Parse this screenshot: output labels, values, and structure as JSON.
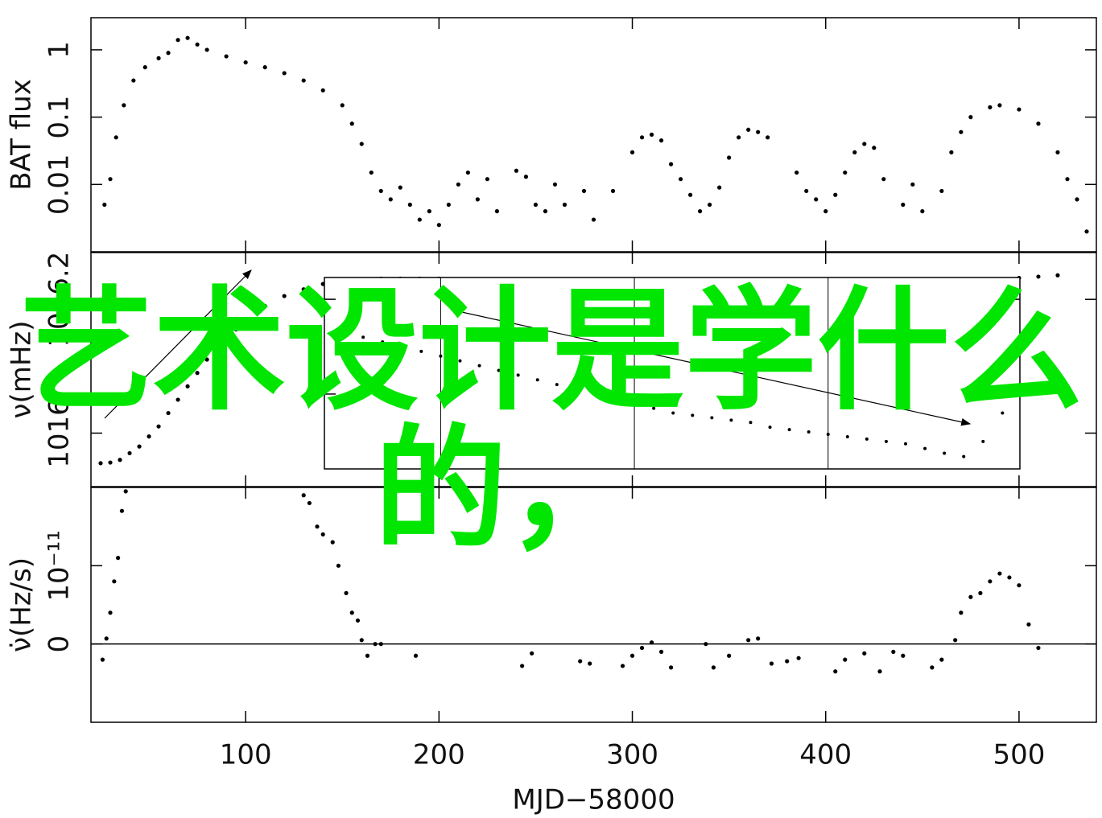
{
  "chart_data": [
    {
      "type": "scatter",
      "y_label": "BAT flux",
      "log_y": true,
      "ylim": [
        0.001,
        3
      ],
      "yticks": [
        0.01,
        0.1,
        1
      ],
      "color": "#000000",
      "x": [
        27,
        30,
        33,
        37,
        42,
        48,
        55,
        60,
        65,
        70,
        75,
        80,
        90,
        100,
        110,
        120,
        130,
        140,
        150,
        155,
        160,
        165,
        170,
        175,
        180,
        185,
        190,
        195,
        200,
        205,
        210,
        215,
        220,
        225,
        230,
        240,
        245,
        250,
        255,
        260,
        265,
        275,
        280,
        290,
        300,
        305,
        310,
        315,
        320,
        325,
        330,
        335,
        340,
        345,
        350,
        355,
        360,
        365,
        370,
        385,
        390,
        395,
        400,
        405,
        410,
        415,
        420,
        425,
        430,
        440,
        445,
        450,
        460,
        465,
        470,
        475,
        485,
        490,
        500,
        510,
        520,
        525,
        530,
        535
      ],
      "values": [
        0.005,
        0.012,
        0.05,
        0.15,
        0.35,
        0.55,
        0.75,
        0.9,
        1.4,
        1.5,
        1.2,
        1.0,
        0.8,
        0.65,
        0.55,
        0.45,
        0.35,
        0.25,
        0.15,
        0.08,
        0.04,
        0.015,
        0.008,
        0.006,
        0.009,
        0.005,
        0.003,
        0.004,
        0.0025,
        0.005,
        0.01,
        0.015,
        0.006,
        0.012,
        0.004,
        0.016,
        0.013,
        0.005,
        0.004,
        0.01,
        0.005,
        0.008,
        0.003,
        0.008,
        0.03,
        0.05,
        0.055,
        0.045,
        0.02,
        0.012,
        0.007,
        0.004,
        0.005,
        0.009,
        0.025,
        0.05,
        0.065,
        0.06,
        0.05,
        0.015,
        0.008,
        0.006,
        0.004,
        0.007,
        0.015,
        0.03,
        0.04,
        0.035,
        0.012,
        0.005,
        0.01,
        0.004,
        0.008,
        0.03,
        0.06,
        0.1,
        0.14,
        0.15,
        0.13,
        0.08,
        0.03,
        0.012,
        0.006,
        0.002
      ]
    },
    {
      "type": "scatter",
      "y_label": "ν(mHz)",
      "ylim": [
        1015.92,
        1016.27
      ],
      "yticks": [
        1016,
        1016.2
      ],
      "color": "#000000",
      "x": [
        25,
        30,
        35,
        40,
        45,
        50,
        55,
        60,
        65,
        70,
        75,
        80,
        85,
        90,
        95,
        100,
        110,
        120,
        130,
        140,
        150,
        160,
        170,
        180,
        190,
        200,
        220,
        240,
        260,
        280,
        300,
        320,
        340,
        360,
        380,
        400,
        420,
        440,
        460,
        470,
        480,
        500,
        510,
        520
      ],
      "values": [
        1015.955,
        1015.956,
        1015.96,
        1015.97,
        1015.98,
        1015.995,
        1016.01,
        1016.03,
        1016.05,
        1016.07,
        1016.09,
        1016.11,
        1016.13,
        1016.14,
        1016.155,
        1016.17,
        1016.19,
        1016.205,
        1016.215,
        1016.223,
        1016.228,
        1016.23,
        1016.231,
        1016.231,
        1016.231,
        1016.231,
        1016.23,
        1016.23,
        1016.229,
        1016.229,
        1016.228,
        1016.228,
        1016.227,
        1016.227,
        1016.226,
        1016.226,
        1016.225,
        1016.225,
        1016.225,
        1016.226,
        1016.228,
        1016.232,
        1016.234,
        1016.236
      ]
    },
    {
      "type": "scatter",
      "y_label": "ν̇(Hz/s)",
      "x_label": "MJD−58000",
      "xlim": [
        20,
        540
      ],
      "xticks": [
        100,
        200,
        300,
        400,
        500
      ],
      "ylim": [
        -1e-11,
        2e-11
      ],
      "yticks": [
        0,
        {
          "value": 1e-11,
          "label": "10⁻¹¹"
        }
      ],
      "zero_line": true,
      "color": "#000000",
      "x": [
        26,
        28,
        30,
        32,
        34,
        36,
        38,
        130,
        133,
        137,
        140,
        145,
        148,
        152,
        155,
        158,
        160,
        163,
        167,
        170,
        188,
        243,
        248,
        273,
        278,
        295,
        300,
        305,
        310,
        315,
        320,
        338,
        342,
        350,
        360,
        365,
        372,
        380,
        386,
        405,
        410,
        420,
        428,
        435,
        440,
        455,
        460,
        467,
        470,
        475,
        480,
        485,
        490,
        495,
        500,
        505,
        510
      ],
      "values": [
        -2e-12,
        7e-13,
        4e-12,
        8e-12,
        1.1e-11,
        1.7e-11,
        1.95e-11,
        1.9e-11,
        1.8e-11,
        1.5e-11,
        1.4e-11,
        1.3e-11,
        1e-11,
        6.5e-12,
        4e-12,
        3e-12,
        5e-13,
        -1.5e-12,
        0,
        0,
        -1.5e-12,
        -2.8e-12,
        -1.2e-12,
        -2.2e-12,
        -2.5e-12,
        -2.8e-12,
        -1.5e-12,
        -5e-13,
        2e-13,
        -1e-12,
        -3e-12,
        0,
        -3e-12,
        -1.5e-12,
        5e-13,
        7e-13,
        -2.5e-12,
        -2.2e-12,
        -1.8e-12,
        -3.5e-12,
        -2e-12,
        -1.2e-12,
        -3.5e-12,
        -1e-12,
        -1.5e-12,
        -3e-12,
        -2e-12,
        5e-13,
        4e-12,
        6e-12,
        6.5e-12,
        8e-12,
        9e-12,
        8.5e-12,
        7.5e-12,
        2.5e-12,
        -5e-13
      ]
    },
    {
      "type": "scatter",
      "inset": true,
      "xlim": [
        140,
        499
      ],
      "xgrid": [
        200,
        300,
        400
      ],
      "ylim": [
        0.42,
        4.46
      ],
      "yticks": [
        2,
        4
      ],
      "color": "#000000",
      "x": [
        150,
        160,
        170,
        180,
        190,
        200,
        210,
        220,
        230,
        240,
        250,
        260,
        270,
        280,
        290,
        300,
        310,
        320,
        330,
        340,
        350,
        360,
        370,
        380,
        390,
        400,
        410,
        420,
        430,
        440,
        450,
        460,
        470,
        480,
        490,
        499
      ],
      "values": [
        3.3,
        3.2,
        3.1,
        3.0,
        2.9,
        2.8,
        2.7,
        2.6,
        2.5,
        2.4,
        2.3,
        2.2,
        2.1,
        2.0,
        1.9,
        1.8,
        1.7,
        1.6,
        1.55,
        1.5,
        1.45,
        1.4,
        1.3,
        1.25,
        1.2,
        1.15,
        1.1,
        1.05,
        1.0,
        0.95,
        0.85,
        0.75,
        0.68,
        1.0,
        1.6,
        2.2
      ]
    }
  ],
  "overlay": {
    "lines": [
      "艺术设计是学什么",
      "的，"
    ]
  }
}
